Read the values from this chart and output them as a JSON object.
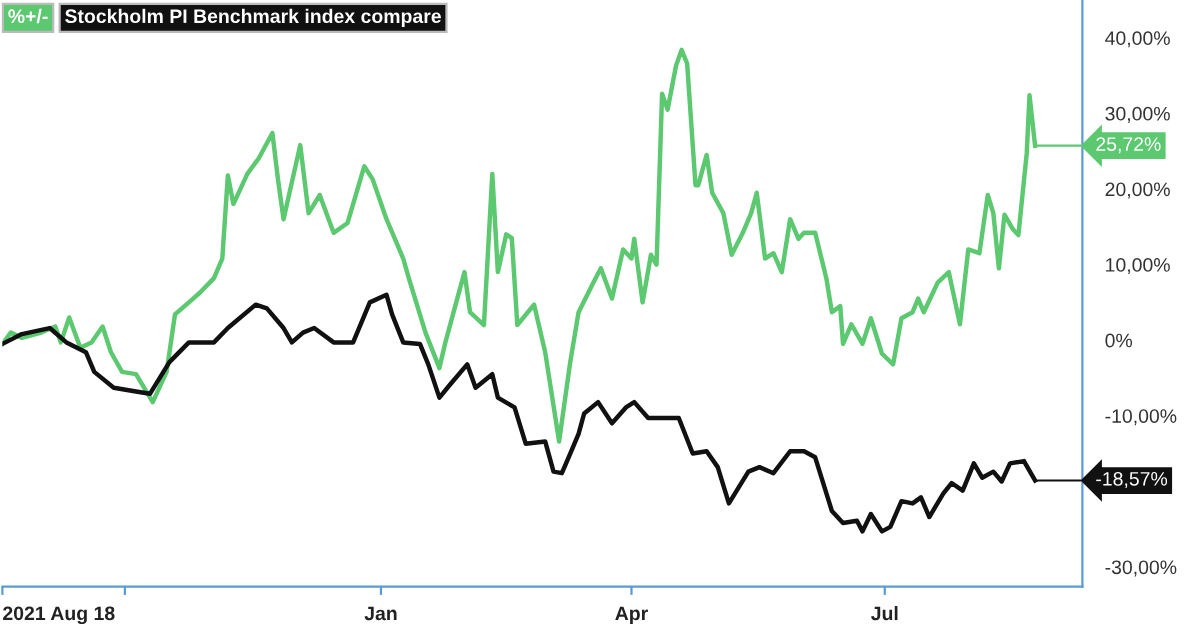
{
  "chart_data": {
    "type": "line",
    "xlim": [
      "2021-08-18",
      "2022-09-10"
    ],
    "xticks": [
      {
        "value": "2021-08-18",
        "label": "2021 Aug 18"
      },
      {
        "value": "2021-10-01",
        "label": null
      },
      {
        "value": "2022-01-01",
        "label": "Jan"
      },
      {
        "value": "2022-04-01",
        "label": "Apr"
      },
      {
        "value": "2022-07-01",
        "label": "Jul"
      }
    ],
    "ylim": [
      -32.6,
      45
    ],
    "yticks": [
      {
        "value": -30,
        "label": "-30,00%"
      },
      {
        "value": -10,
        "label": "-10,00%"
      },
      {
        "value": 0,
        "label": "0%"
      },
      {
        "value": 10,
        "label": "10,00%"
      },
      {
        "value": 20,
        "label": "20,00%"
      },
      {
        "value": 30,
        "label": "30,00%"
      },
      {
        "value": 40,
        "label": "40,00%"
      }
    ],
    "grid": false,
    "legend": "top left",
    "marker": "none",
    "line_style": "solid",
    "series": [
      {
        "name": "%+/-",
        "color": "#5cc870",
        "x": [
          "2021-08-18",
          "2021-08-21",
          "2021-08-25",
          "2021-09-01",
          "2021-09-06",
          "2021-09-08",
          "2021-09-11",
          "2021-09-15",
          "2021-09-19",
          "2021-09-23",
          "2021-09-26",
          "2021-09-30",
          "2021-10-05",
          "2021-10-11",
          "2021-10-16",
          "2021-10-19",
          "2021-10-24",
          "2021-10-28",
          "2021-11-02",
          "2021-11-05",
          "2021-11-07",
          "2021-11-09",
          "2021-11-14",
          "2021-11-18",
          "2021-11-23",
          "2021-11-25",
          "2021-11-27",
          "2021-12-03",
          "2021-12-06",
          "2021-12-10",
          "2021-12-15",
          "2021-12-20",
          "2021-12-26",
          "2021-12-29",
          "2022-01-03",
          "2022-01-09",
          "2022-01-11",
          "2022-01-17",
          "2022-01-22",
          "2022-01-24",
          "2022-01-31",
          "2022-02-02",
          "2022-02-07",
          "2022-02-10",
          "2022-02-12",
          "2022-02-15",
          "2022-02-17",
          "2022-02-19",
          "2022-02-25",
          "2022-03-01",
          "2022-03-06",
          "2022-03-10",
          "2022-03-13",
          "2022-03-18",
          "2022-03-21",
          "2022-03-25",
          "2022-03-29",
          "2022-04-01",
          "2022-04-02",
          "2022-04-05",
          "2022-04-08",
          "2022-04-10",
          "2022-04-12",
          "2022-04-14",
          "2022-04-17",
          "2022-04-19",
          "2022-04-21",
          "2022-04-24",
          "2022-04-25",
          "2022-04-28",
          "2022-04-30",
          "2022-05-04",
          "2022-05-07",
          "2022-05-11",
          "2022-05-14",
          "2022-05-16",
          "2022-05-19",
          "2022-05-22",
          "2022-05-25",
          "2022-05-28",
          "2022-05-31",
          "2022-06-02",
          "2022-06-06",
          "2022-06-10",
          "2022-06-12",
          "2022-06-15",
          "2022-06-16",
          "2022-06-19",
          "2022-06-23",
          "2022-06-26",
          "2022-06-30",
          "2022-07-04",
          "2022-07-07",
          "2022-07-11",
          "2022-07-13",
          "2022-07-15",
          "2022-07-20",
          "2022-07-24",
          "2022-07-28",
          "2022-07-31",
          "2022-08-04",
          "2022-08-07",
          "2022-08-09",
          "2022-08-11",
          "2022-08-13",
          "2022-08-16",
          "2022-08-18",
          "2022-08-21",
          "2022-08-22",
          "2022-08-24"
        ],
        "values": [
          -0.5,
          1,
          0.3,
          1,
          1.8,
          -0.3,
          3,
          -1,
          -0.3,
          1.8,
          -1.6,
          -4.2,
          -4.5,
          -8.2,
          -4.2,
          3.4,
          5,
          6.3,
          8.2,
          10.8,
          21.8,
          18,
          22,
          24,
          27.4,
          21.3,
          16,
          25.8,
          16.8,
          19.2,
          14.2,
          15.5,
          23,
          21.3,
          16,
          10.8,
          8.2,
          1,
          -3.7,
          -0.5,
          9,
          3.7,
          2,
          22,
          9,
          14,
          13.5,
          2,
          4.7,
          -1.6,
          -13.4,
          -2.9,
          3.7,
          7.4,
          9.5,
          5.5,
          12,
          10.8,
          13.4,
          5,
          11.3,
          10,
          32.6,
          30.5,
          36.3,
          38.4,
          36.6,
          20.5,
          20.5,
          24.5,
          19.5,
          16.8,
          11.3,
          14.2,
          16.8,
          19.5,
          10.8,
          11.5,
          9,
          16,
          13.4,
          14.2,
          14.2,
          8.2,
          3.7,
          4.5,
          -0.5,
          2.1,
          -0.5,
          2.9,
          -1.8,
          -3.2,
          2.9,
          3.7,
          5.5,
          3.7,
          7.6,
          9,
          2.1,
          12,
          11.5,
          19.2,
          16.8,
          9.5,
          16.6,
          14.7,
          13.9,
          24.7,
          32.4,
          25.72
        ],
        "value_labels": [
          null,
          null,
          null,
          null,
          null,
          null,
          null,
          null,
          null,
          null,
          null,
          null,
          null,
          null,
          null,
          null,
          null,
          null,
          null,
          null,
          null,
          null,
          null,
          null,
          null,
          null,
          null,
          null,
          null,
          null,
          null,
          null,
          null,
          null,
          null,
          null,
          null,
          null,
          null,
          null,
          null,
          null,
          null,
          null,
          null,
          null,
          null,
          null,
          null,
          null,
          null,
          null,
          null,
          null,
          null,
          null,
          null,
          null,
          null,
          null,
          null,
          null,
          null,
          null,
          null,
          null,
          null,
          null,
          null,
          null,
          null,
          null,
          null,
          null,
          null,
          null,
          null,
          null,
          null,
          null,
          null,
          null,
          null,
          null,
          null,
          null,
          null,
          null,
          null,
          null,
          null,
          null,
          null,
          null,
          null,
          null,
          null,
          null,
          null,
          null,
          null,
          null,
          null,
          null,
          null,
          null,
          null,
          null,
          null,
          "25,72%"
        ]
      },
      {
        "name": "Stockholm PI Benchmark index compare",
        "color": "#111111",
        "x": [
          "2021-08-18",
          "2021-08-25",
          "2021-09-04",
          "2021-09-10",
          "2021-09-17",
          "2021-09-20",
          "2021-09-27",
          "2021-10-05",
          "2021-10-10",
          "2021-10-17",
          "2021-10-24",
          "2021-11-02",
          "2021-11-07",
          "2021-11-17",
          "2021-11-21",
          "2021-11-27",
          "2021-11-30",
          "2021-12-04",
          "2021-12-08",
          "2021-12-15",
          "2021-12-22",
          "2021-12-28",
          "2022-01-03",
          "2022-01-05",
          "2022-01-09",
          "2022-01-15",
          "2022-01-18",
          "2022-01-22",
          "2022-01-26",
          "2022-02-01",
          "2022-02-04",
          "2022-02-10",
          "2022-02-12",
          "2022-02-18",
          "2022-02-22",
          "2022-03-01",
          "2022-03-04",
          "2022-03-07",
          "2022-03-10",
          "2022-03-13",
          "2022-03-15",
          "2022-03-20",
          "2022-03-25",
          "2022-03-30",
          "2022-04-02",
          "2022-04-07",
          "2022-04-18",
          "2022-04-23",
          "2022-04-28",
          "2022-05-02",
          "2022-05-06",
          "2022-05-13",
          "2022-05-17",
          "2022-05-22",
          "2022-05-28",
          "2022-06-02",
          "2022-06-06",
          "2022-06-12",
          "2022-06-16",
          "2022-06-21",
          "2022-06-23",
          "2022-06-26",
          "2022-06-30",
          "2022-07-03",
          "2022-07-07",
          "2022-07-11",
          "2022-07-14",
          "2022-07-17",
          "2022-07-22",
          "2022-07-25",
          "2022-07-29",
          "2022-08-02",
          "2022-08-05",
          "2022-08-09",
          "2022-08-12",
          "2022-08-15",
          "2022-08-20",
          "2022-08-24"
        ],
        "values": [
          -0.5,
          0.8,
          1.6,
          -0.3,
          -1.6,
          -4.2,
          -6.3,
          -6.8,
          -7.1,
          -2.9,
          -0.3,
          -0.3,
          1.6,
          4.7,
          4.2,
          1.6,
          -0.3,
          1,
          1.6,
          -0.3,
          -0.3,
          5,
          6,
          3.4,
          -0.3,
          -0.5,
          -3.2,
          -7.6,
          -5.8,
          -3.2,
          -6.3,
          -4.5,
          -7.6,
          -8.9,
          -13.7,
          -13.4,
          -17.4,
          -17.6,
          -15,
          -12.4,
          -9.7,
          -8.2,
          -11,
          -8.9,
          -8.2,
          -10.3,
          -10.3,
          -15,
          -14.7,
          -16.8,
          -21.6,
          -17.4,
          -16.8,
          -17.6,
          -14.7,
          -14.7,
          -15.5,
          -22.6,
          -24.2,
          -23.9,
          -25.3,
          -23,
          -25.3,
          -24.7,
          -21.3,
          -21.6,
          -20.8,
          -23.4,
          -20.3,
          -18.9,
          -19.9,
          -16.3,
          -18.2,
          -17.4,
          -18.7,
          -16.3,
          -16,
          -18.57
        ],
        "value_labels": [
          null,
          null,
          null,
          null,
          null,
          null,
          null,
          null,
          null,
          null,
          null,
          null,
          null,
          null,
          null,
          null,
          null,
          null,
          null,
          null,
          null,
          null,
          null,
          null,
          null,
          null,
          null,
          null,
          null,
          null,
          null,
          null,
          null,
          null,
          null,
          null,
          null,
          null,
          null,
          null,
          null,
          null,
          null,
          null,
          null,
          null,
          null,
          null,
          null,
          null,
          null,
          null,
          null,
          null,
          null,
          null,
          null,
          null,
          null,
          null,
          null,
          null,
          null,
          null,
          null,
          null,
          null,
          null,
          null,
          null,
          null,
          null,
          null,
          null,
          null,
          null,
          null,
          "-18,57%"
        ]
      }
    ],
    "data_labels": false
  }
}
